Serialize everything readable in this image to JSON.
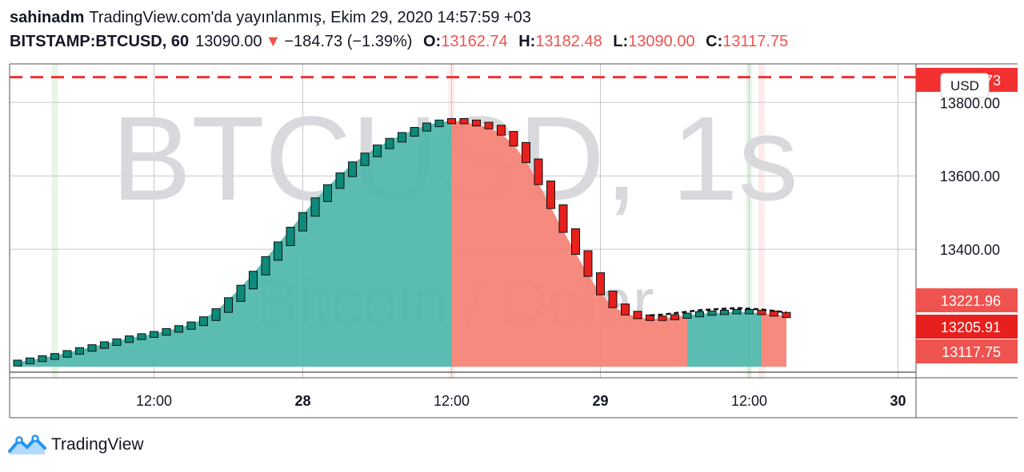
{
  "header": {
    "author": "sahinadm",
    "published": "TradingView.com'da yayınlanmış, Ekim 29, 2020 14:57:59 +03",
    "symbol": "BITSTAMP:BTCUSD, 60",
    "last": "13090.00",
    "down_arrow": "▼",
    "change": "−184.73 (−1.39%)",
    "o_label": "O:",
    "o_value": "13162.74",
    "h_label": "H:",
    "h_value": "13182.48",
    "l_label": "L:",
    "l_value": "13090.00",
    "c_label": "C:",
    "c_value": "13117.75"
  },
  "footer": {
    "brand": "TradingView",
    "logo_icon": "tradingview-logo-icon"
  },
  "colors": {
    "up": "#26a69a",
    "down": "#ef5350",
    "up_fill": "#52b9ad",
    "down_fill": "#f58478",
    "candle_up": "#0d8a7a",
    "candle_down": "#e8201d",
    "alert": "#f23030"
  },
  "chart_data": {
    "type": "bar",
    "watermark_symbol": "BTCUSD, 1s",
    "watermark_desc": "Bitcoin / Dolar",
    "currency": "USD",
    "ylim": [
      13050,
      13905
    ],
    "y_ticks": [
      13400,
      13600,
      13800
    ],
    "y_tick_labels": [
      "13400.00",
      "13600.00",
      "13800.00"
    ],
    "x_tick_labels": [
      "12:00",
      "28",
      "12:00",
      "29",
      "12:00",
      "30"
    ],
    "x_tick_bold": [
      false,
      true,
      false,
      true,
      false,
      true
    ],
    "x_tick_index": [
      11,
      23,
      35,
      47,
      59,
      71
    ],
    "price_tags": [
      {
        "label": "13868.73",
        "value": 13868.73,
        "color": "#f23030"
      },
      {
        "label": "13221.96",
        "value": 13221.96,
        "color": "#ef5350"
      },
      {
        "label": "13205.91",
        "value": 13205.91,
        "color": "#e8201d"
      },
      {
        "label": "13117.75",
        "value": 13117.75,
        "color": "#ef5350"
      }
    ],
    "alert_line": 13868.73,
    "baseline": 13080,
    "values": [
      13092,
      13098,
      13104,
      13110,
      13118,
      13126,
      13134,
      13142,
      13150,
      13158,
      13164,
      13170,
      13178,
      13186,
      13196,
      13210,
      13232,
      13262,
      13296,
      13334,
      13374,
      13414,
      13454,
      13494,
      13534,
      13570,
      13602,
      13632,
      13656,
      13678,
      13696,
      13712,
      13726,
      13738,
      13746,
      13750,
      13746,
      13740,
      13732,
      13715,
      13685,
      13640,
      13580,
      13515,
      13450,
      13390,
      13330,
      13280,
      13245,
      13225,
      13215,
      13210,
      13212,
      13216,
      13220,
      13224,
      13226,
      13228,
      13230,
      13228,
      13226,
      13222,
      13218
    ],
    "trend": [
      "up",
      "up",
      "up",
      "up",
      "up",
      "up",
      "up",
      "up",
      "up",
      "up",
      "up",
      "up",
      "up",
      "up",
      "up",
      "up",
      "up",
      "up",
      "up",
      "up",
      "up",
      "up",
      "up",
      "up",
      "up",
      "up",
      "up",
      "up",
      "up",
      "up",
      "up",
      "up",
      "up",
      "up",
      "up",
      "down",
      "down",
      "down",
      "down",
      "down",
      "down",
      "down",
      "down",
      "down",
      "down",
      "down",
      "down",
      "down",
      "down",
      "down",
      "down",
      "down",
      "down",
      "down",
      "up",
      "up",
      "up",
      "up",
      "up",
      "up",
      "down",
      "down",
      "down"
    ],
    "dashed_forecast_from": 51
  }
}
